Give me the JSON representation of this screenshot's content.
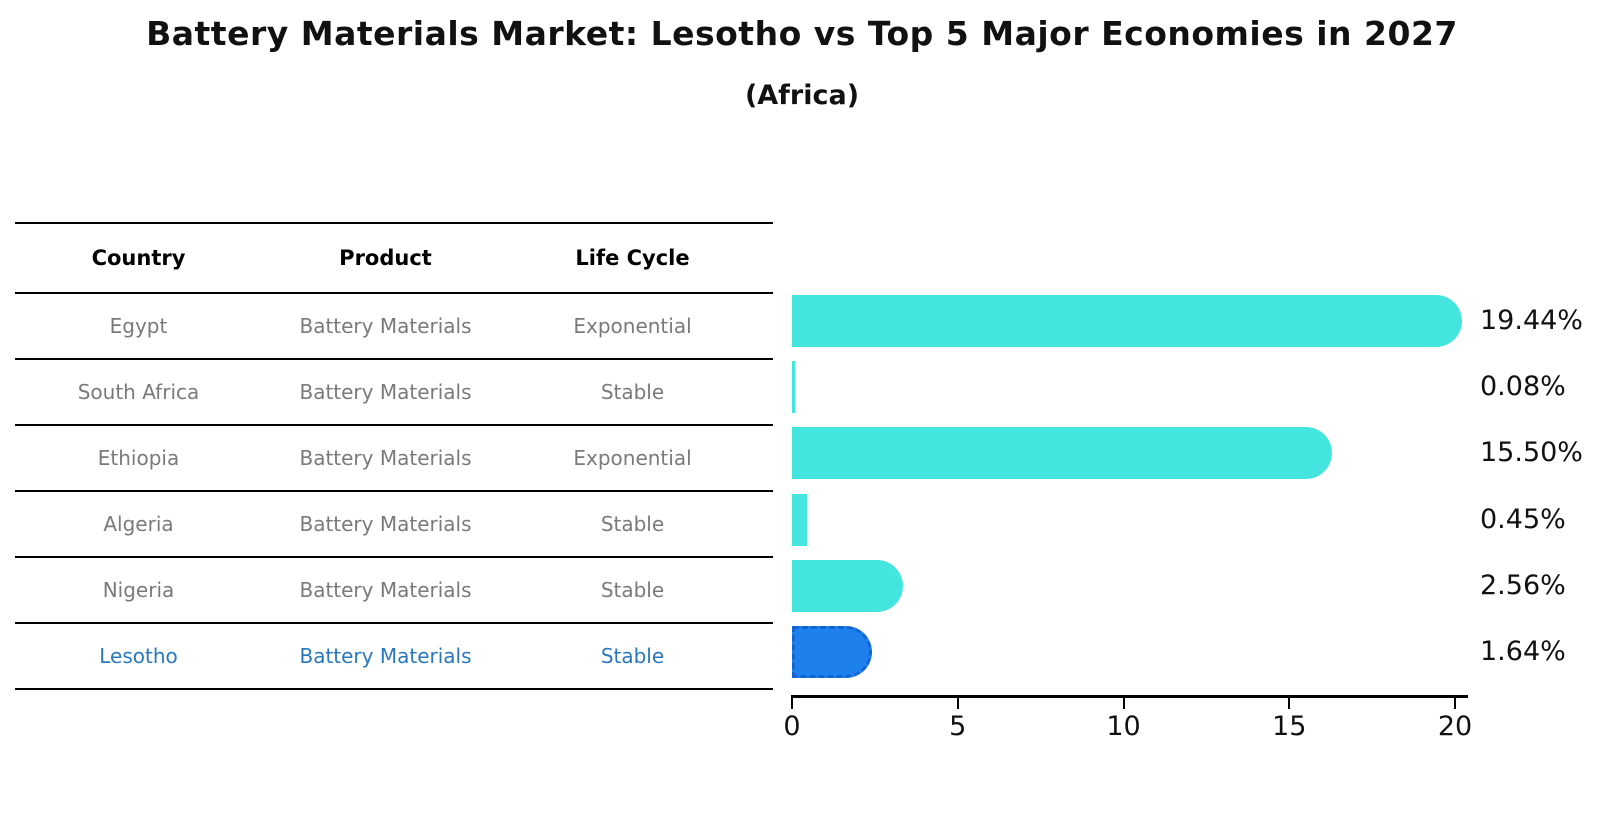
{
  "title": "Battery Materials Market: Lesotho vs Top 5 Major Economies in 2027",
  "subtitle": "(Africa)",
  "table": {
    "columns": [
      "Country",
      "Product",
      "Life Cycle"
    ],
    "rows": [
      {
        "country": "Egypt",
        "product": "Battery Materials",
        "life_cycle": "Exponential",
        "highlight": false
      },
      {
        "country": "South Africa",
        "product": "Battery Materials",
        "life_cycle": "Stable",
        "highlight": false
      },
      {
        "country": "Ethiopia",
        "product": "Battery Materials",
        "life_cycle": "Exponential",
        "highlight": false
      },
      {
        "country": "Algeria",
        "product": "Battery Materials",
        "life_cycle": "Stable",
        "highlight": false
      },
      {
        "country": "Nigeria",
        "product": "Battery Materials",
        "life_cycle": "Stable",
        "highlight": false
      },
      {
        "country": "Lesotho",
        "product": "Battery Materials",
        "life_cycle": "Stable",
        "highlight": true
      }
    ]
  },
  "chart_data": {
    "type": "bar",
    "orientation": "horizontal",
    "title": "Battery Materials Market: Lesotho vs Top 5 Major Economies in 2027",
    "subtitle": "(Africa)",
    "categories": [
      "Egypt",
      "South Africa",
      "Ethiopia",
      "Algeria",
      "Nigeria",
      "Lesotho"
    ],
    "values": [
      19.44,
      0.08,
      15.5,
      0.45,
      2.56,
      1.64
    ],
    "value_labels": [
      "19.44%",
      "0.08%",
      "15.50%",
      "0.45%",
      "2.56%",
      "1.64%"
    ],
    "xlabel": "",
    "ylabel": "",
    "xlim": [
      0,
      20
    ],
    "xticks": [
      0,
      5,
      10,
      15,
      20
    ],
    "grid": false,
    "legend": false,
    "bar_color": "#45e5df",
    "highlight_bar_color": "#1e80ec",
    "highlight_border_color": "#1264d2",
    "highlight_index": 5,
    "highlight_text_color": "#2878be"
  }
}
